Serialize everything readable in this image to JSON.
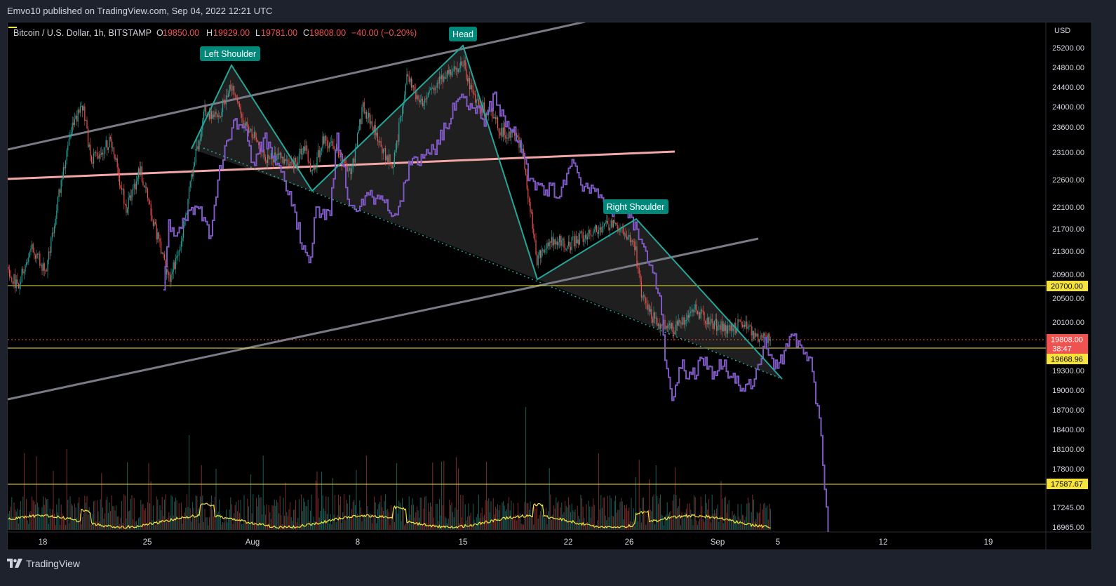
{
  "publication": {
    "text": "Emvo10 published on TradingView.com, Sep 04, 2022 12:21 UTC"
  },
  "footer": {
    "brand": "TradingView"
  },
  "chart_data": {
    "type": "candlestick",
    "legend": {
      "symbol": "Bitcoin / U.S. Dollar, 1h, BITSTAMP",
      "o_label": "O",
      "o_value": "19850.00",
      "h_label": "H",
      "h_value": "19929.00",
      "l_label": "L",
      "l_value": "19781.00",
      "c_label": "C",
      "c_value": "19808.00",
      "change": "−40.00 (−0.20%)"
    },
    "currency": "USD",
    "y_ticks": [
      "25200.00",
      "24800.00",
      "24400.00",
      "24000.00",
      "23600.00",
      "23100.00",
      "22600.00",
      "22100.00",
      "21700.00",
      "21300.00",
      "20900.00",
      "20500.00",
      "20100.00",
      "19300.00",
      "19000.00",
      "18700.00",
      "18400.00",
      "18100.00",
      "17800.00",
      "17245.00",
      "16965.00"
    ],
    "x_ticks": [
      "18",
      "25",
      "Aug",
      "8",
      "15",
      "22",
      "26",
      "Sep",
      "5",
      "12",
      "19"
    ],
    "price_labels": [
      {
        "value": "20700.00",
        "color": "#f5e33b",
        "text_color": "#000000"
      },
      {
        "value": "19808.00",
        "color": "#ef5350",
        "text_color": "#ffffff",
        "sub": "38:47"
      },
      {
        "value": "19668.96",
        "color": "#f5e33b",
        "text_color": "#000000"
      },
      {
        "value": "17587.67",
        "color": "#f5e33b",
        "text_color": "#000000"
      }
    ],
    "pattern_labels": [
      "Left Shoulder",
      "Head",
      "Right Shoulder"
    ],
    "colors": {
      "up": "#26a69a",
      "down": "#ef5350",
      "overlay": "#7e57c2",
      "pattern": "#26a69a",
      "channel": "#787b86",
      "neckline_red": "#f4a6a6",
      "level": "#f5e33b",
      "volume_ma": "#f5e33b"
    },
    "ylim": [
      16900,
      25400
    ]
  }
}
